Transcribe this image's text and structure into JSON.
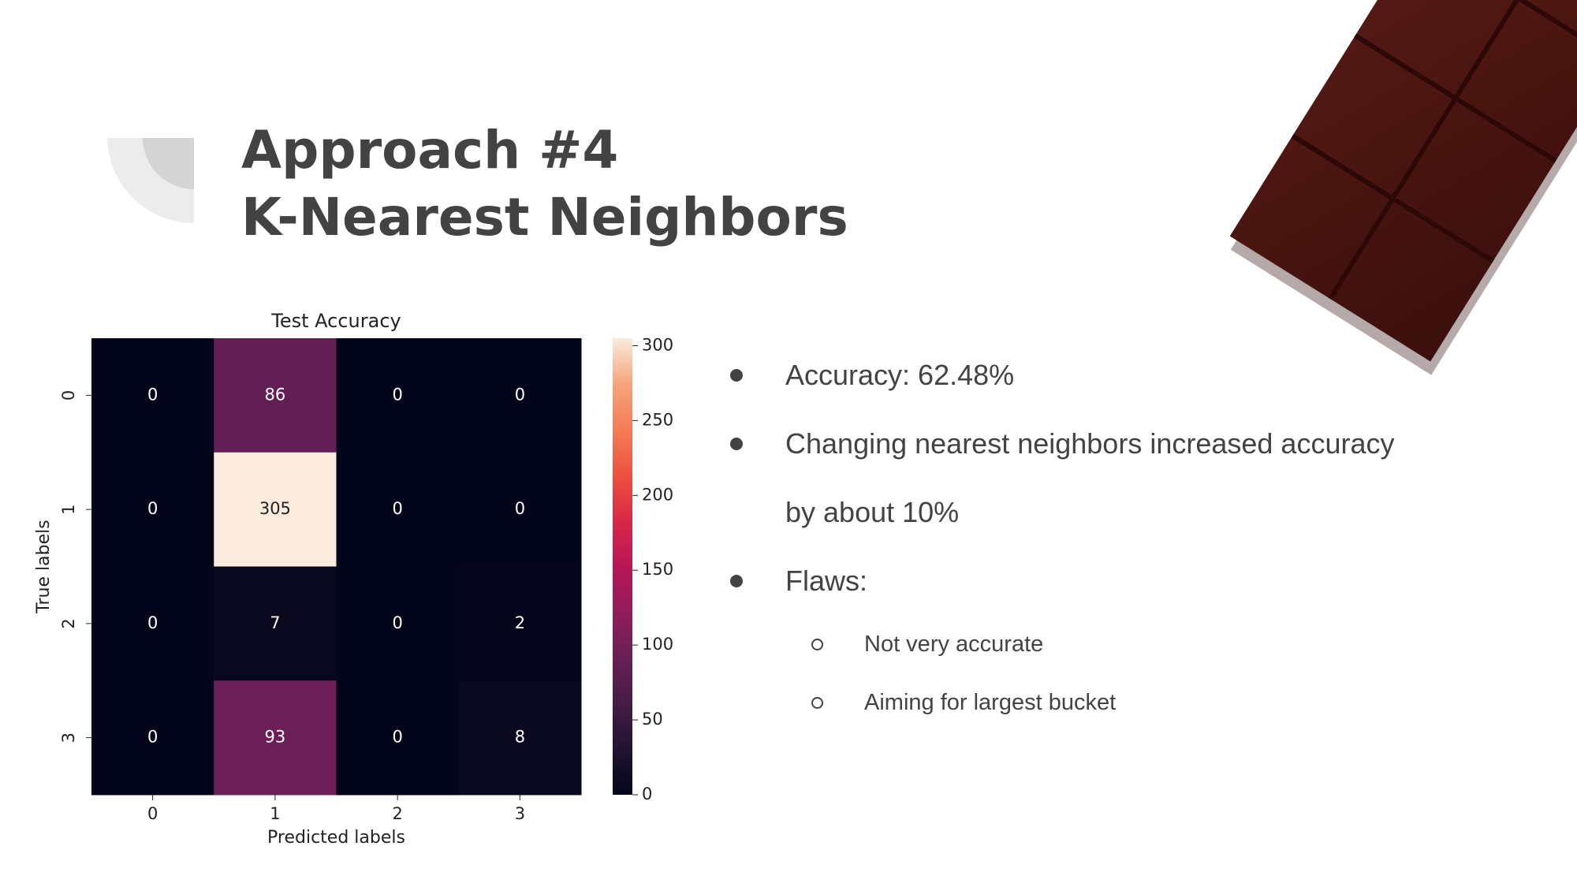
{
  "slide": {
    "title": [
      "Approach #4",
      "K-Nearest Neighbors"
    ],
    "bullets": [
      {
        "text": "Accuracy: 62.48%"
      },
      {
        "text": "Changing nearest neighbors increased accuracy by about 10%"
      },
      {
        "text": "Flaws:",
        "sub": [
          "Not very accurate",
          "Aiming for largest bucket"
        ]
      }
    ]
  },
  "chart_data": {
    "type": "heatmap",
    "title": "Test Accuracy",
    "x_label": "Predicted labels",
    "y_label": "True labels",
    "x_categories": [
      "0",
      "1",
      "2",
      "3"
    ],
    "y_categories": [
      "0",
      "1",
      "2",
      "3"
    ],
    "values": [
      [
        0,
        86,
        0,
        0
      ],
      [
        0,
        305,
        0,
        0
      ],
      [
        0,
        7,
        0,
        2
      ],
      [
        0,
        93,
        0,
        8
      ]
    ],
    "colormap": "rocket",
    "clim": [
      0,
      305
    ],
    "cticks": [
      0,
      50,
      100,
      150,
      200,
      250,
      300
    ]
  }
}
